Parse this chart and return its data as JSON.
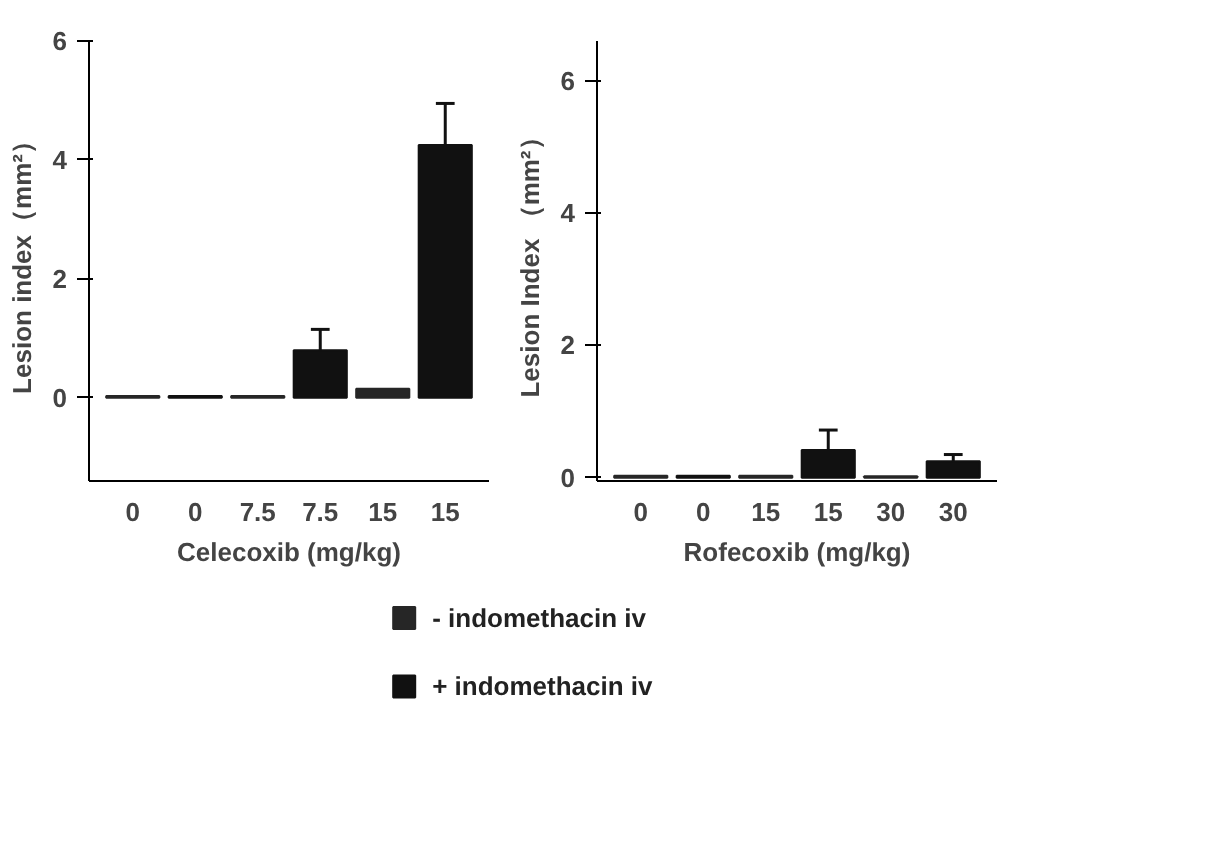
{
  "chart_data": [
    {
      "type": "bar",
      "xlabel": "Celecoxib (mg/kg)",
      "ylabel": "Lesion index（mm²）",
      "categories": [
        "0",
        "0",
        "7.5",
        "7.5",
        "15",
        "15"
      ],
      "ylim": [
        -1.4,
        6
      ],
      "yticks": [
        0,
        2,
        4,
        6
      ],
      "grid": false,
      "legend": "bottom",
      "series": [
        {
          "name": "- indomethacin iv",
          "color": "#262626",
          "values": [
            0.03,
            null,
            0.03,
            null,
            0.15,
            null
          ]
        },
        {
          "name": "+ indomethacin iv",
          "color": "#111111",
          "values": [
            null,
            0.03,
            null,
            0.8,
            null,
            4.25
          ],
          "errors": [
            null,
            null,
            null,
            [
              0.8,
              1.15
            ],
            null,
            [
              4.25,
              4.95
            ]
          ]
        }
      ]
    },
    {
      "type": "bar",
      "xlabel": "Rofecoxib (mg/kg)",
      "ylabel": "Lesion Index （mm²）",
      "categories": [
        "0",
        "0",
        "15",
        "15",
        "30",
        "30"
      ],
      "ylim": [
        -0.05,
        6.6
      ],
      "yticks": [
        0,
        2,
        4,
        6
      ],
      "grid": false,
      "series": [
        {
          "color": "#262626",
          "values": [
            0.03,
            null,
            0.03,
            null,
            0.02,
            null
          ]
        },
        {
          "color": "#111111",
          "values": [
            null,
            0.03,
            null,
            0.42,
            null,
            0.25
          ],
          "errors": [
            null,
            null,
            null,
            [
              0.42,
              0.72
            ],
            null,
            [
              0.25,
              0.35
            ]
          ]
        }
      ]
    }
  ]
}
